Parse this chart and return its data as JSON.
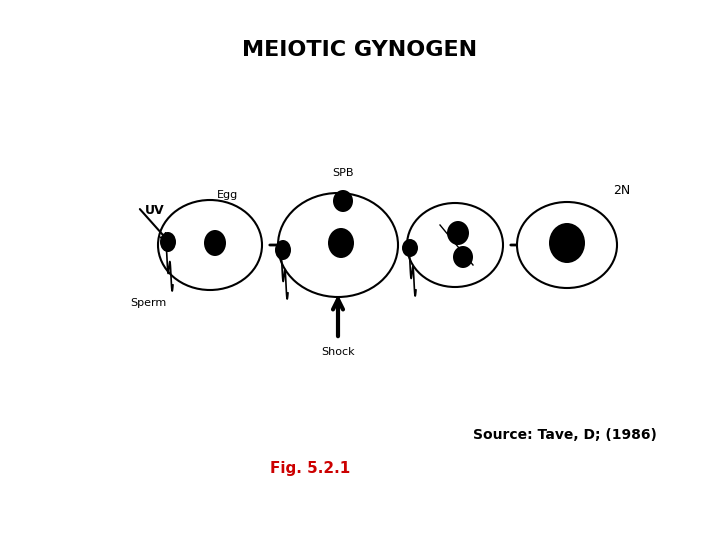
{
  "title": "MEIOTIC GYNOGEN",
  "title_fontsize": 16,
  "title_fontweight": "bold",
  "bg_color": "#ffffff",
  "fig_caption": "Fig. 5.2.1",
  "fig_caption_color": "#cc0000",
  "source_text": "Source: Tave, D; (1986)",
  "source_color": "#000000",
  "label_UV": "UV",
  "label_Egg": "Egg",
  "label_SPB": "SPB",
  "label_2N": "2N",
  "label_Sperm": "Sperm",
  "label_Shock": "Shock"
}
